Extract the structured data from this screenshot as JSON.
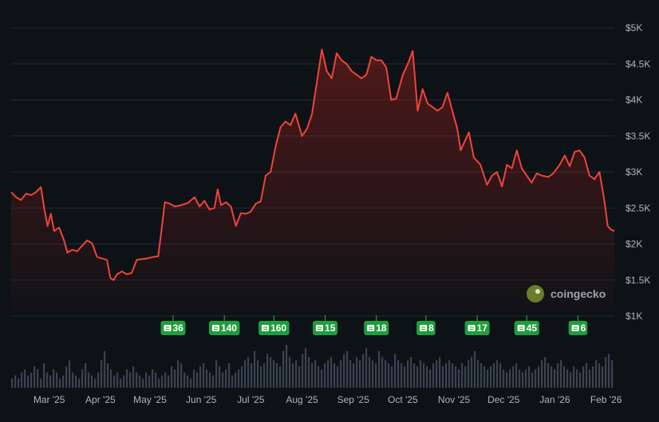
{
  "chart_data": {
    "type": "area",
    "title": "",
    "xlabel": "",
    "ylabel": "",
    "currency_prefix": "$",
    "ylim": [
      1000,
      5000
    ],
    "y_ticks": [
      {
        "value": 5000,
        "label": "$5K"
      },
      {
        "value": 4500,
        "label": "$4.5K"
      },
      {
        "value": 4000,
        "label": "$4K"
      },
      {
        "value": 3500,
        "label": "$3.5K"
      },
      {
        "value": 3000,
        "label": "$3K"
      },
      {
        "value": 2500,
        "label": "$2.5K"
      },
      {
        "value": 2000,
        "label": "$2K"
      },
      {
        "value": 1500,
        "label": "$1.5K"
      },
      {
        "value": 1000,
        "label": "$1K"
      }
    ],
    "x_ticks": [
      "Mar '25",
      "Apr '25",
      "May '25",
      "Jun '25",
      "Jul '25",
      "Aug '25",
      "Sep '25",
      "Oct '25",
      "Nov '25",
      "Dec '25",
      "Jan '26",
      "Feb '26"
    ],
    "x_range": [
      "2025-02-06",
      "2026-02-06"
    ],
    "grid": true,
    "line_color": "#f04437",
    "series": [
      {
        "values": [
          [
            "2025-02-06",
            2720
          ],
          [
            "2025-02-09",
            2650
          ],
          [
            "2025-02-12",
            2610
          ],
          [
            "2025-02-15",
            2700
          ],
          [
            "2025-02-18",
            2680
          ],
          [
            "2025-02-21",
            2720
          ],
          [
            "2025-02-24",
            2790
          ],
          [
            "2025-02-26",
            2500
          ],
          [
            "2025-02-28",
            2250
          ],
          [
            "2025-03-02",
            2420
          ],
          [
            "2025-03-04",
            2180
          ],
          [
            "2025-03-07",
            2230
          ],
          [
            "2025-03-10",
            2050
          ],
          [
            "2025-03-12",
            1880
          ],
          [
            "2025-03-15",
            1920
          ],
          [
            "2025-03-18",
            1900
          ],
          [
            "2025-03-21",
            1980
          ],
          [
            "2025-03-24",
            2050
          ],
          [
            "2025-03-27",
            2010
          ],
          [
            "2025-03-30",
            1820
          ],
          [
            "2025-04-02",
            1800
          ],
          [
            "2025-04-05",
            1780
          ],
          [
            "2025-04-07",
            1530
          ],
          [
            "2025-04-09",
            1500
          ],
          [
            "2025-04-11",
            1580
          ],
          [
            "2025-04-14",
            1620
          ],
          [
            "2025-04-17",
            1580
          ],
          [
            "2025-04-20",
            1600
          ],
          [
            "2025-04-23",
            1780
          ],
          [
            "2025-04-26",
            1790
          ],
          [
            "2025-04-29",
            1800
          ],
          [
            "2025-05-03",
            1820
          ],
          [
            "2025-05-06",
            1830
          ],
          [
            "2025-05-08",
            2200
          ],
          [
            "2025-05-10",
            2580
          ],
          [
            "2025-05-13",
            2560
          ],
          [
            "2025-05-16",
            2520
          ],
          [
            "2025-05-20",
            2540
          ],
          [
            "2025-05-24",
            2570
          ],
          [
            "2025-05-28",
            2650
          ],
          [
            "2025-05-31",
            2520
          ],
          [
            "2025-06-03",
            2600
          ],
          [
            "2025-06-06",
            2480
          ],
          [
            "2025-06-09",
            2500
          ],
          [
            "2025-06-11",
            2760
          ],
          [
            "2025-06-13",
            2540
          ],
          [
            "2025-06-16",
            2580
          ],
          [
            "2025-06-19",
            2520
          ],
          [
            "2025-06-22",
            2250
          ],
          [
            "2025-06-25",
            2430
          ],
          [
            "2025-06-28",
            2420
          ],
          [
            "2025-07-01",
            2450
          ],
          [
            "2025-07-04",
            2560
          ],
          [
            "2025-07-07",
            2590
          ],
          [
            "2025-07-10",
            2950
          ],
          [
            "2025-07-13",
            3000
          ],
          [
            "2025-07-16",
            3350
          ],
          [
            "2025-07-19",
            3620
          ],
          [
            "2025-07-22",
            3700
          ],
          [
            "2025-07-25",
            3650
          ],
          [
            "2025-07-28",
            3810
          ],
          [
            "2025-08-01",
            3500
          ],
          [
            "2025-08-04",
            3600
          ],
          [
            "2025-08-07",
            3800
          ],
          [
            "2025-08-10",
            4250
          ],
          [
            "2025-08-13",
            4700
          ],
          [
            "2025-08-16",
            4400
          ],
          [
            "2025-08-19",
            4300
          ],
          [
            "2025-08-22",
            4650
          ],
          [
            "2025-08-25",
            4550
          ],
          [
            "2025-08-28",
            4500
          ],
          [
            "2025-08-31",
            4400
          ],
          [
            "2025-09-03",
            4350
          ],
          [
            "2025-09-06",
            4300
          ],
          [
            "2025-09-09",
            4350
          ],
          [
            "2025-09-12",
            4600
          ],
          [
            "2025-09-15",
            4550
          ],
          [
            "2025-09-18",
            4550
          ],
          [
            "2025-09-21",
            4450
          ],
          [
            "2025-09-24",
            4000
          ],
          [
            "2025-09-27",
            4020
          ],
          [
            "2025-10-01",
            4350
          ],
          [
            "2025-10-04",
            4500
          ],
          [
            "2025-10-07",
            4680
          ],
          [
            "2025-10-10",
            3850
          ],
          [
            "2025-10-13",
            4150
          ],
          [
            "2025-10-16",
            3950
          ],
          [
            "2025-10-19",
            3900
          ],
          [
            "2025-10-22",
            3850
          ],
          [
            "2025-10-25",
            3900
          ],
          [
            "2025-10-28",
            4100
          ],
          [
            "2025-10-31",
            3850
          ],
          [
            "2025-11-03",
            3600
          ],
          [
            "2025-11-05",
            3300
          ],
          [
            "2025-11-07",
            3400
          ],
          [
            "2025-11-10",
            3550
          ],
          [
            "2025-11-13",
            3200
          ],
          [
            "2025-11-17",
            3100
          ],
          [
            "2025-11-21",
            2820
          ],
          [
            "2025-11-24",
            2950
          ],
          [
            "2025-11-27",
            3000
          ],
          [
            "2025-11-30",
            2800
          ],
          [
            "2025-12-03",
            3100
          ],
          [
            "2025-12-06",
            3050
          ],
          [
            "2025-12-09",
            3300
          ],
          [
            "2025-12-12",
            3050
          ],
          [
            "2025-12-15",
            2950
          ],
          [
            "2025-12-18",
            2850
          ],
          [
            "2025-12-21",
            2980
          ],
          [
            "2025-12-24",
            2950
          ],
          [
            "2025-12-28",
            2930
          ],
          [
            "2025-12-31",
            2980
          ],
          [
            "2026-01-04",
            3100
          ],
          [
            "2026-01-07",
            3230
          ],
          [
            "2026-01-10",
            3080
          ],
          [
            "2026-01-13",
            3280
          ],
          [
            "2026-01-16",
            3300
          ],
          [
            "2026-01-19",
            3200
          ],
          [
            "2026-01-22",
            2950
          ],
          [
            "2026-01-25",
            2900
          ],
          [
            "2026-01-28",
            3000
          ],
          [
            "2026-01-31",
            2600
          ],
          [
            "2026-02-02",
            2250
          ],
          [
            "2026-02-04",
            2200
          ],
          [
            "2026-02-06",
            2180
          ]
        ]
      }
    ],
    "volume": [
      3,
      4,
      3,
      5,
      6,
      4,
      5,
      7,
      6,
      3,
      8,
      5,
      4,
      6,
      5,
      3,
      4,
      7,
      9,
      5,
      4,
      3,
      6,
      8,
      5,
      4,
      3,
      5,
      9,
      12,
      8,
      6,
      4,
      5,
      3,
      4,
      6,
      5,
      7,
      5,
      4,
      3,
      5,
      4,
      6,
      5,
      3,
      4,
      5,
      4,
      7,
      6,
      9,
      8,
      5,
      4,
      3,
      6,
      5,
      7,
      8,
      6,
      5,
      4,
      9,
      7,
      5,
      6,
      8,
      4,
      5,
      6,
      7,
      9,
      10,
      8,
      12,
      9,
      7,
      8,
      11,
      10,
      9,
      8,
      7,
      12,
      14,
      10,
      8,
      9,
      7,
      11,
      13,
      10,
      8,
      9,
      7,
      6,
      8,
      9,
      10,
      8,
      7,
      9,
      11,
      12,
      9,
      8,
      10,
      9,
      11,
      13,
      10,
      9,
      8,
      12,
      10,
      9,
      8,
      7,
      11,
      9,
      8,
      7,
      9,
      10,
      8,
      7,
      9,
      8,
      7,
      6,
      8,
      9,
      10,
      7,
      8,
      9,
      8,
      7,
      6,
      8,
      7,
      9,
      10,
      12,
      9,
      8,
      7,
      6,
      7,
      8,
      9,
      8,
      6,
      5,
      6,
      7,
      8,
      6,
      5,
      6,
      7,
      5,
      6,
      7,
      9,
      10,
      8,
      7,
      6,
      8,
      9,
      7,
      6,
      5,
      7,
      6,
      5,
      7,
      8,
      6,
      7,
      9,
      8,
      7,
      10,
      11,
      9
    ],
    "news_markers": [
      {
        "count": "36",
        "date": "2025-05-15"
      },
      {
        "count": "140",
        "date": "2025-06-15"
      },
      {
        "count": "160",
        "date": "2025-07-15"
      },
      {
        "count": "15",
        "date": "2025-08-15"
      },
      {
        "count": "18",
        "date": "2025-09-15"
      },
      {
        "count": "8",
        "date": "2025-10-15"
      },
      {
        "count": "17",
        "date": "2025-11-15"
      },
      {
        "count": "45",
        "date": "2025-12-15"
      },
      {
        "count": "6",
        "date": "2026-01-15"
      }
    ]
  },
  "watermark": {
    "label": "coingecko"
  }
}
